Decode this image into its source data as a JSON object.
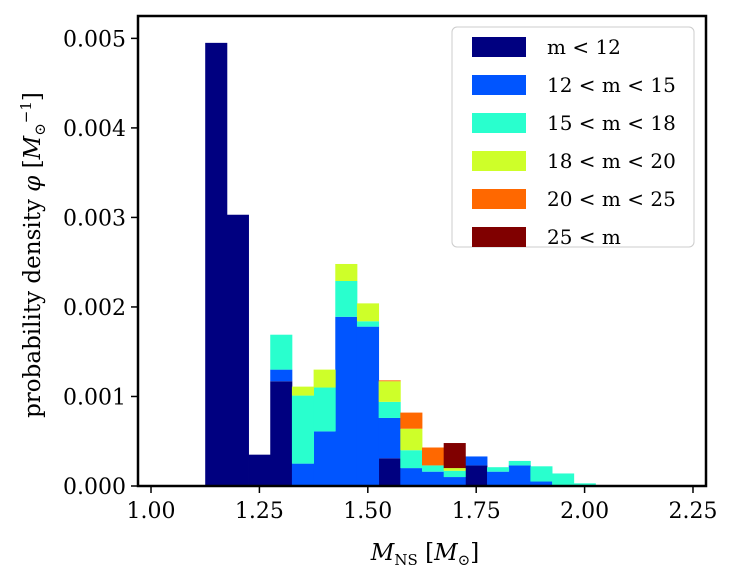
{
  "chart_data": {
    "type": "bar",
    "stacked": true,
    "xlabel": "M_NS [M_⊙]",
    "ylabel": "probability density φ [M_⊙^-1]",
    "xlim": [
      0.97,
      2.28
    ],
    "ylim": [
      0,
      0.00525
    ],
    "xticks": [
      "1.00",
      "1.25",
      "1.50",
      "1.75",
      "2.00",
      "2.25"
    ],
    "xtick_values": [
      1.0,
      1.25,
      1.5,
      1.75,
      2.0,
      2.25
    ],
    "yticks": [
      "0.000",
      "0.001",
      "0.002",
      "0.003",
      "0.004",
      "0.005"
    ],
    "ytick_values": [
      0.0,
      0.001,
      0.002,
      0.003,
      0.004,
      0.005
    ],
    "bin_edges": [
      1.125,
      1.175,
      1.225,
      1.275,
      1.325,
      1.375,
      1.425,
      1.475,
      1.525,
      1.575,
      1.625,
      1.675,
      1.725,
      1.775,
      1.825,
      1.875,
      1.925,
      1.975,
      2.025
    ],
    "legend_position": "upper right",
    "series": [
      {
        "name": "m < 12",
        "color": "#000080",
        "values": [
          0.00495,
          0.00303,
          0.00035,
          0.00117,
          0.0,
          0.0,
          0.0,
          0.0,
          0.00031,
          0.0,
          0.0,
          0.0,
          0.00023,
          0.0,
          0.0,
          0.0,
          0.0,
          0.0
        ]
      },
      {
        "name": "12 < m < 15",
        "color": "#0055ff",
        "values": [
          0,
          0,
          0,
          0.00013,
          0.00025,
          0.00061,
          0.00189,
          0.00178,
          0.00045,
          0.0002,
          0.00016,
          0.0001,
          0.0001,
          0.00016,
          0.00023,
          5e-05,
          0.0,
          0.0
        ]
      },
      {
        "name": "15 < m < 18",
        "color": "#29ffce",
        "values": [
          0,
          0,
          0,
          0.00039,
          0.00076,
          0.00049,
          0.0004,
          6e-05,
          0.00018,
          0.0002,
          7e-05,
          7e-05,
          0,
          5e-05,
          5e-05,
          0.00017,
          0.00014,
          3e-05
        ]
      },
      {
        "name": "18 < m < 20",
        "color": "#ceff29",
        "values": [
          0,
          0,
          0,
          0,
          0.0001,
          0.0002,
          0.00019,
          0.0002,
          0.00023,
          0.00024,
          0.0,
          3e-05,
          0.0,
          0,
          0,
          0,
          0,
          0
        ]
      },
      {
        "name": "20 < m < 25",
        "color": "#ff6800",
        "values": [
          0,
          0,
          0,
          0,
          0,
          0,
          0,
          0,
          1e-05,
          0.00018,
          0.0002,
          0.0,
          0,
          0,
          0,
          0,
          0,
          0
        ]
      },
      {
        "name": "25 < m",
        "color": "#800000",
        "values": [
          0,
          0,
          0,
          0,
          0,
          0,
          0,
          0,
          0,
          0,
          0,
          0.00028,
          0,
          0,
          0,
          0,
          0,
          0
        ]
      }
    ]
  }
}
